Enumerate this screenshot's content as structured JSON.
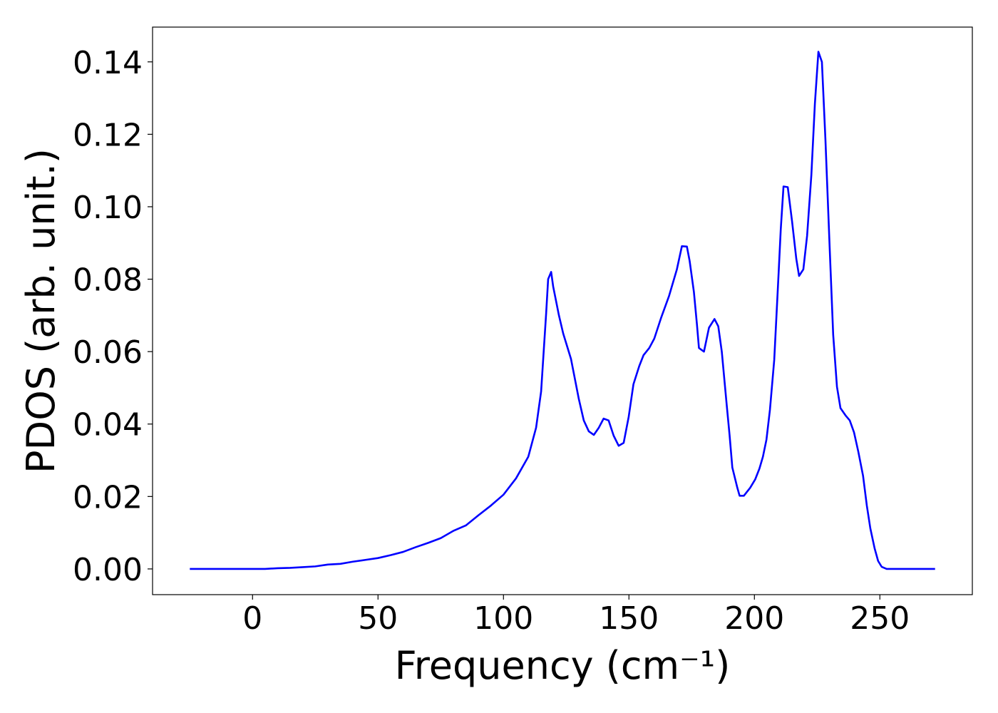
{
  "chart_data": {
    "type": "line",
    "xlabel": "Frequency (cm⁻¹)",
    "ylabel": "PDOS (arb. unit.)",
    "xlim": [
      -39.85,
      286.85
    ],
    "ylim": [
      -0.0071,
      0.1496
    ],
    "xticks": [
      0,
      50,
      100,
      150,
      200,
      250
    ],
    "yticks": [
      {
        "value": 0,
        "label": "0.00"
      },
      {
        "value": 0.02,
        "label": "0.02"
      },
      {
        "value": 0.04,
        "label": "0.04"
      },
      {
        "value": 0.06,
        "label": "0.06"
      },
      {
        "value": 0.08,
        "label": "0.08"
      },
      {
        "value": 0.1,
        "label": "0.10"
      },
      {
        "value": 0.12,
        "label": "0.12"
      },
      {
        "value": 0.14,
        "label": "0.14"
      }
    ],
    "grid": false,
    "series": [
      {
        "color": "#0000ff",
        "x": [
          -25,
          -10,
          5,
          10,
          15,
          20,
          25,
          30,
          35,
          40,
          45,
          50,
          55,
          60,
          65,
          70,
          75,
          80,
          85,
          90,
          95,
          100,
          105,
          109.9,
          113.0,
          115.0,
          117.0,
          117.8,
          119.0,
          119.8,
          122.1,
          123.8,
          126.9,
          130.0,
          132.0,
          134.0,
          136.0,
          138.0,
          139.9,
          141.9,
          143.9,
          145.9,
          147.9,
          149.9,
          151.8,
          154.1,
          155.8,
          158.1,
          160.1,
          162.9,
          166.0,
          169.1,
          171.1,
          173.1,
          174.2,
          175.9,
          177.1,
          177.9,
          179.9,
          181.9,
          184.1,
          185.6,
          187.0,
          189.0,
          190.1,
          191.2,
          193.2,
          194.1,
          195.8,
          198.3,
          200.3,
          202.0,
          203.4,
          204.8,
          206.2,
          207.9,
          209.6,
          210.5,
          211.6,
          213.3,
          215.0,
          216.7,
          217.8,
          219.5,
          221.0,
          222.7,
          224.1,
          225.5,
          226.9,
          228.3,
          230.0,
          231.4,
          232.9,
          234.3,
          236.3,
          238.0,
          239.7,
          241.4,
          243.3,
          244.8,
          246.2,
          247.9,
          249.3,
          250.7,
          252.7,
          272
        ],
        "values": [
          0,
          0,
          0,
          0.0002,
          0.0003,
          0.0005,
          0.0007,
          0.0012,
          0.0014,
          0.002,
          0.0025,
          0.003,
          0.0038,
          0.0047,
          0.006,
          0.0072,
          0.0085,
          0.0105,
          0.012,
          0.0148,
          0.0175,
          0.0205,
          0.025,
          0.031,
          0.039,
          0.049,
          0.0705,
          0.08,
          0.082,
          0.078,
          0.07,
          0.065,
          0.058,
          0.047,
          0.041,
          0.038,
          0.037,
          0.039,
          0.0415,
          0.041,
          0.0368,
          0.034,
          0.0348,
          0.042,
          0.051,
          0.056,
          0.059,
          0.061,
          0.0636,
          0.0695,
          0.0754,
          0.0827,
          0.0891,
          0.089,
          0.085,
          0.0764,
          0.0675,
          0.061,
          0.06,
          0.0666,
          0.069,
          0.067,
          0.06,
          0.045,
          0.037,
          0.028,
          0.0224,
          0.0202,
          0.0202,
          0.0224,
          0.0247,
          0.0277,
          0.031,
          0.0357,
          0.044,
          0.0577,
          0.081,
          0.0937,
          0.1056,
          0.1054,
          0.096,
          0.0856,
          0.0809,
          0.0827,
          0.092,
          0.1088,
          0.1284,
          0.1428,
          0.14,
          0.1186,
          0.0886,
          0.0646,
          0.0503,
          0.0444,
          0.0424,
          0.041,
          0.0377,
          0.0324,
          0.0257,
          0.0175,
          0.0112,
          0.0057,
          0.0022,
          0.0006,
          0,
          0
        ]
      }
    ]
  }
}
